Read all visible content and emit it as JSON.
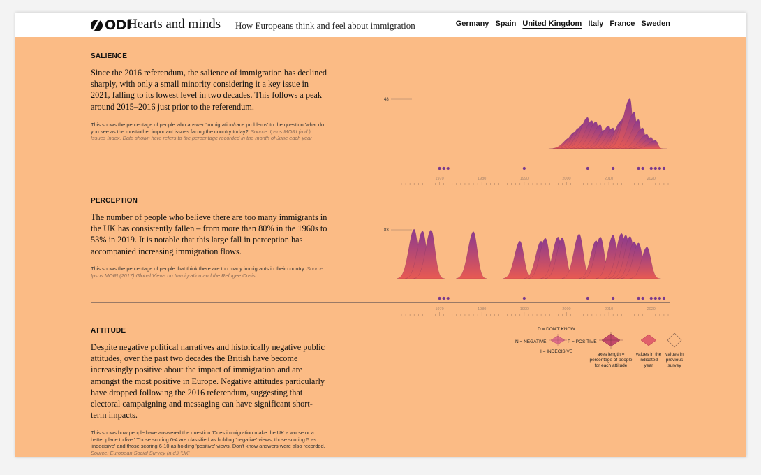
{
  "header": {
    "logo_text": "ODI",
    "site_title": "Hearts and minds",
    "site_subtitle": "How Europeans think and feel about immigration",
    "nav": [
      {
        "label": "Germany",
        "active": false
      },
      {
        "label": "Spain",
        "active": false
      },
      {
        "label": "United Kingdom",
        "active": true
      },
      {
        "label": "Italy",
        "active": false
      },
      {
        "label": "France",
        "active": false
      },
      {
        "label": "Sweden",
        "active": false
      }
    ]
  },
  "salience": {
    "title": "SALIENCE",
    "lead": "Since the 2016 referendum, the salience of immigration has declined sharply, with only a small minority considering it a key issue in 2021, falling to its lowest level in two decades. This follows a peak around 2015–2016 just prior to the referendum.",
    "note": "This shows the percentage of people who answer 'immigration/race problems' to the question 'what do you see as the most/other important issues facing the country today?'",
    "source": "Source: Ipsos MORI (n.d.) Issues Index. Data shown here refers to the percentage recorded in the month of June each year",
    "peak_label": "48"
  },
  "perception": {
    "title": "PERCEPTION",
    "lead": "The number of people who believe there are too many immigrants in the UK has consistently fallen – from more than 80% in the 1960s to 53% in 2019. It is notable that this large fall in perception has accompanied increasing immigration flows.",
    "note": "This shows the percentage of people that think there are too many immigrants in their country.",
    "source": "Source: Ipsos MORI (2017) Global Views on Immigration and the Refugee Crisis",
    "peak_label": "83"
  },
  "attitude": {
    "title": "ATTITUDE",
    "lead": "Despite negative political narratives and historically negative public attitudes, over the past two decades the British have become increasingly positive about the impact of immigration and are amongst the most positive in Europe. Negative attitudes particularly have dropped following the 2016 referendum, suggesting that electoral campaigning and messaging can have significant short-term impacts.",
    "note": "This shows how people have answered the question 'Does immigration make the UK a worse or a better place to live.' Those scoring 0-4 are classified as holding 'negative' views, those scoring 5 as 'indecisive' and those scoring 6-10 as holding 'positive' views. Don't know answers were also recorded.",
    "source": "Source: European Social Survey (n.d.) 'UK'",
    "legend": {
      "dk": "D = DON'T KNOW",
      "neg": "N = NEGATIVE",
      "pos": "P = POSITIVE",
      "ind": "I = INDECISIVE",
      "axes": [
        "axes length =",
        "percentage of people",
        "for each attitude"
      ],
      "indicated": [
        "values in the",
        "indicated",
        "year"
      ],
      "previous": [
        "values in",
        "previous",
        "survey"
      ]
    }
  },
  "timeline": {
    "decades": [
      "1970",
      "1980",
      "1990",
      "2000",
      "2010",
      "2020"
    ],
    "range": [
      1961,
      2024
    ],
    "election_years": [
      1970,
      1971,
      1972,
      1990,
      2005,
      2011,
      2017,
      2018,
      2020,
      2021,
      2022,
      2023
    ]
  },
  "colors": {
    "background": "#fbbb85",
    "ridge_top": "#8b3a8f",
    "ridge_bottom": "#e85a52",
    "dot": "#7a3a8c"
  },
  "chart_data": [
    {
      "type": "area",
      "name": "salience",
      "xlim": [
        1961,
        2024
      ],
      "ylim": [
        0,
        48
      ],
      "x": [
        2001,
        2002,
        2003,
        2004,
        2005,
        2006,
        2007,
        2008,
        2009,
        2010,
        2011,
        2012,
        2013,
        2014,
        2015,
        2016,
        2017,
        2018,
        2019,
        2020,
        2021
      ],
      "values": [
        11,
        16,
        20,
        24,
        30,
        27,
        26,
        23,
        18,
        22,
        20,
        19,
        27,
        33,
        48,
        35,
        28,
        20,
        14,
        11,
        8
      ]
    },
    {
      "type": "area",
      "name": "perception",
      "xlim": [
        1961,
        2024
      ],
      "ylim": [
        0,
        83
      ],
      "x": [
        1964,
        1966,
        1968,
        1978,
        1989,
        1994,
        1995,
        1998,
        1999,
        2003,
        2007,
        2008,
        2011,
        2013,
        2014,
        2015,
        2016,
        2017,
        2019
      ],
      "values": [
        83,
        80,
        82,
        79,
        63,
        63,
        68,
        70,
        69,
        75,
        64,
        70,
        73,
        76,
        73,
        71,
        62,
        60,
        53
      ]
    }
  ]
}
